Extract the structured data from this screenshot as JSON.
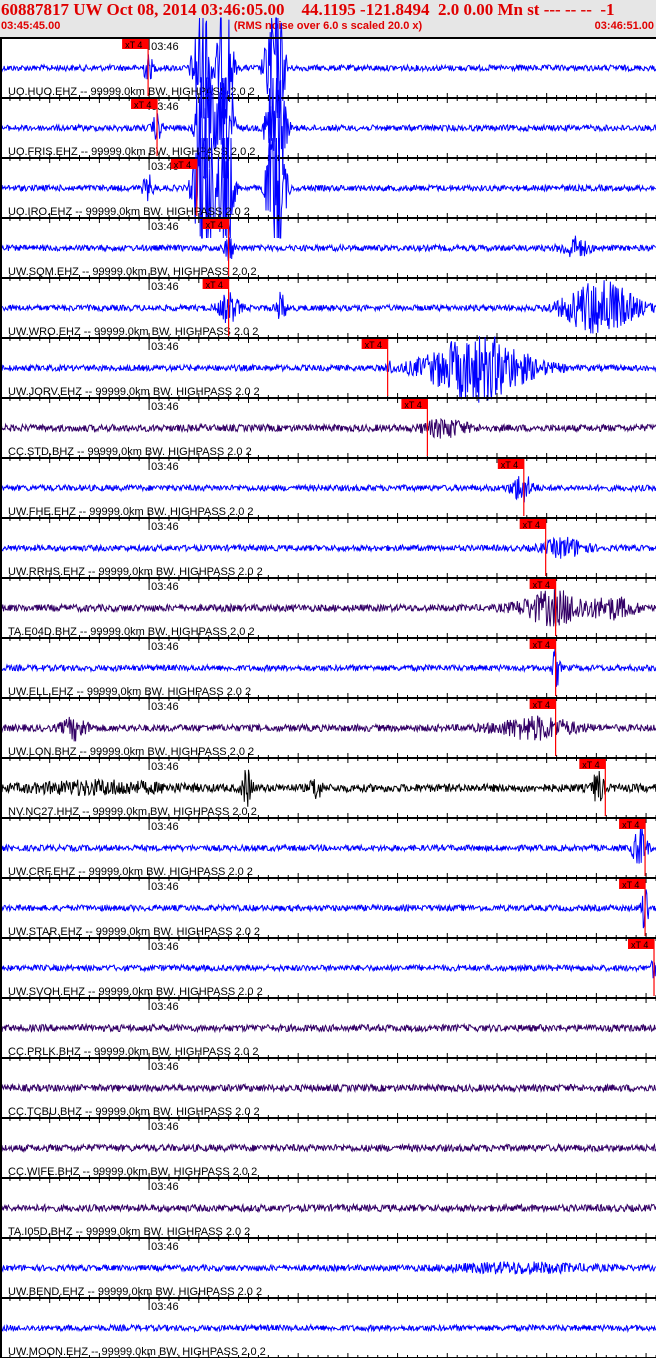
{
  "header": {
    "title": "60887817 UW Oct 08, 2014 03:46:05.00    44.1195 -121.8494  2.0 0.00 Mn st --- -- --  -1",
    "start_time": "03:45:45.00",
    "subtitle": "(RMS noise over 6.0 s scaled 20.0 x)",
    "end_time": "03:46:51.00"
  },
  "chart_data": {
    "type": "line",
    "title": "60887817 UW Oct 08, 2014 03:46:05.00",
    "xlim": [
      "03:45:45.00",
      "03:46:51.00"
    ],
    "tick_label": "03:46",
    "pick_label": "xT 4",
    "colors": {
      "header_text": "#e00000",
      "pick": "#ff0000",
      "ehz": "#0000ff",
      "bhz": "#330066",
      "hhz": "#000000"
    },
    "traces": [
      {
        "label": "UO.HUO.EHZ -- 99999.0km BW. HIGHPASS  2.0  2",
        "color": "#0000ff",
        "pick": "03:45:59.9"
      },
      {
        "label": "UO.FRIS.EHZ -- 99999.0km BW. HIGHPASS  2.0  2",
        "color": "#0000ff",
        "pick": "03:46:00.8"
      },
      {
        "label": "UO.IRO.EHZ -- 99999.0km BW. HIGHPASS  2.0  2",
        "color": "#0000ff",
        "pick": "03:46:04.8"
      },
      {
        "label": "UW.SQM.EHZ -- 99999.0km BW. HIGHPASS  2.0  2",
        "color": "#0000ff",
        "pick": "03:46:08.0"
      },
      {
        "label": "UW.WRO.EHZ -- 99999.0km BW. HIGHPASS  2.0  2",
        "color": "#0000ff",
        "pick": "03:46:08.0"
      },
      {
        "label": "UW.JORV.EHZ -- 99999.0km BW. HIGHPASS  2.0  2",
        "color": "#0000ff",
        "pick": "03:46:24.0"
      },
      {
        "label": "CC.STD.BHZ -- 99999.0km BW. HIGHPASS  2.0  2",
        "color": "#330066",
        "pick": "03:46:28.0"
      },
      {
        "label": "UW.FHE.EHZ -- 99999.0km BW. HIGHPASS  2.0  2",
        "color": "#0000ff",
        "pick": "03:46:37.7"
      },
      {
        "label": "UW.RRHS.EHZ -- 99999.0km BW. HIGHPASS  2.0  2",
        "color": "#0000ff",
        "pick": "03:46:39.9"
      },
      {
        "label": "TA.E04D.BHZ -- 99999.0km BW. HIGHPASS  2.0  2",
        "color": "#330066",
        "pick": "03:46:40.9"
      },
      {
        "label": "UW.ELL.EHZ -- 99999.0km BW. HIGHPASS  2.0  2",
        "color": "#0000ff",
        "pick": "03:46:40.9"
      },
      {
        "label": "UW.LON.BHZ -- 99999.0km BW. HIGHPASS  2.0  2",
        "color": "#330066",
        "pick": "03:46:40.9"
      },
      {
        "label": "NV.NC27.HHZ -- 99999.0km BW. HIGHPASS  2.0  2",
        "color": "#000000",
        "pick": "03:46:45.9"
      },
      {
        "label": "UW.CRF.EHZ -- 99999.0km BW. HIGHPASS  2.0  2",
        "color": "#0000ff",
        "pick": "03:46:49.9"
      },
      {
        "label": "UW.STAR.EHZ -- 99999.0km BW. HIGHPASS  2.0  2",
        "color": "#0000ff",
        "pick": "03:46:49.9"
      },
      {
        "label": "UW.SVOH.EHZ -- 99999.0km BW. HIGHPASS  2.0  2",
        "color": "#0000ff",
        "pick": "03:46:50.8"
      },
      {
        "label": "CC.PRLK.BHZ -- 99999.0km BW. HIGHPASS  2.0  2",
        "color": "#330066",
        "pick": null
      },
      {
        "label": "CC.TCBU.BHZ -- 99999.0km BW. HIGHPASS  2.0  2",
        "color": "#330066",
        "pick": null
      },
      {
        "label": "CC.WIFE.BHZ -- 99999.0km BW. HIGHPASS  2.0  2",
        "color": "#330066",
        "pick": null
      },
      {
        "label": "TA.I05D.BHZ -- 99999.0km BW. HIGHPASS  2.0  2",
        "color": "#330066",
        "pick": null
      },
      {
        "label": "UW.BEND.EHZ -- 99999.0km BW. HIGHPASS  2.0  2",
        "color": "#0000ff",
        "pick": null
      },
      {
        "label": "UW.MOON.EHZ -- 99999.0km BW. HIGHPASS  2.0  2",
        "color": "#0000ff",
        "pick": null
      }
    ]
  }
}
